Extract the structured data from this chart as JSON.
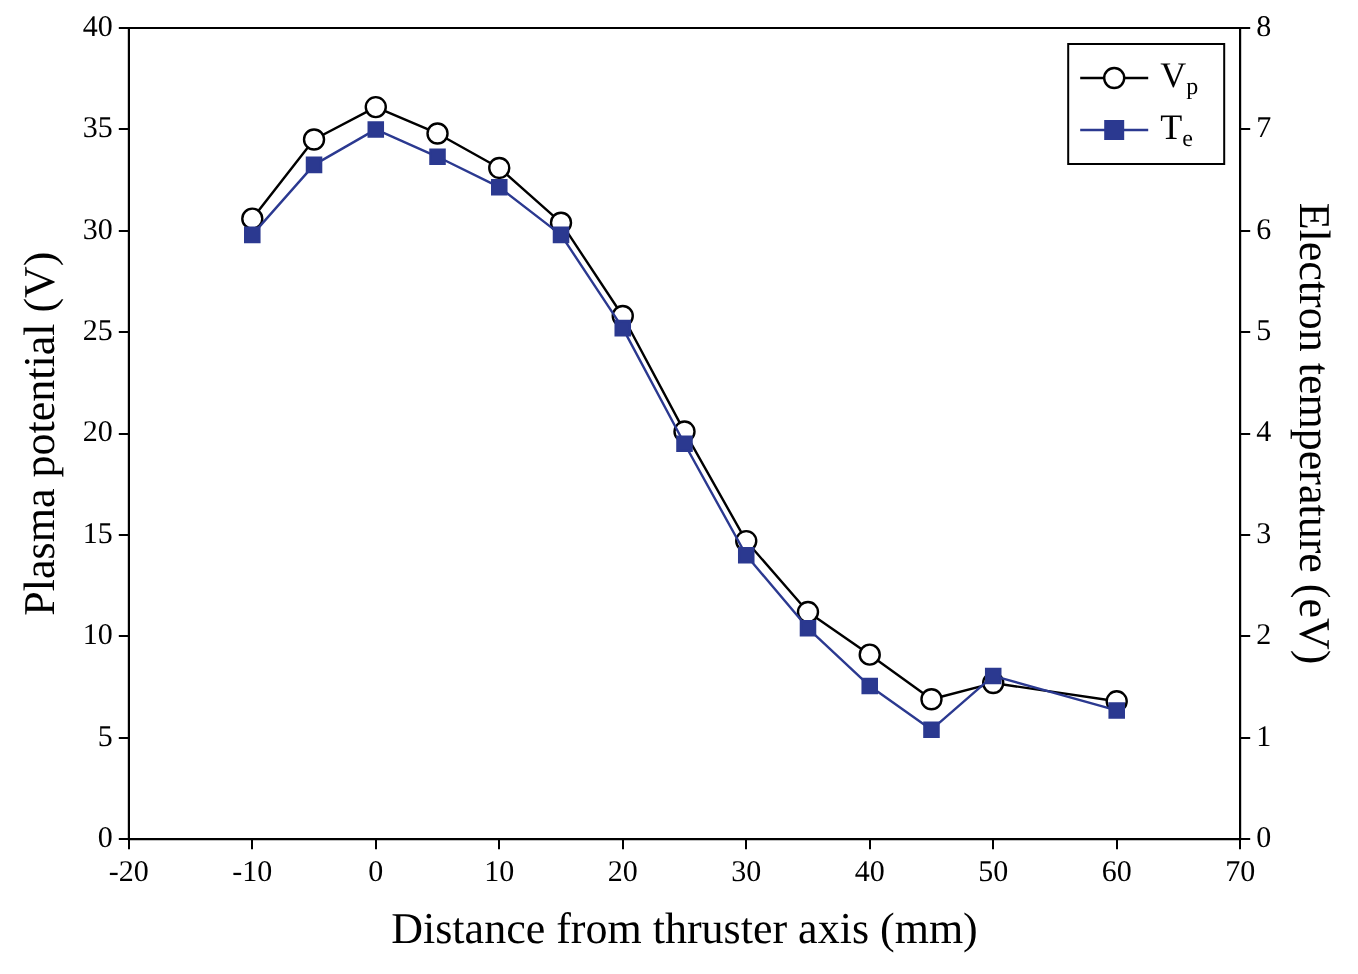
{
  "chart_data": {
    "type": "line",
    "xlabel": "Distance from thruster axis (mm)",
    "ylabel": "Plasma potential (V)",
    "y2label": "Electron temperature (eV)",
    "x": [
      -10,
      -5,
      0,
      5,
      10,
      15,
      20,
      25,
      30,
      35,
      40,
      45,
      50,
      60
    ],
    "xlim": [
      -20,
      70
    ],
    "xticks": [
      -20,
      -10,
      0,
      10,
      20,
      30,
      40,
      50,
      60,
      70
    ],
    "ylim": [
      0,
      40
    ],
    "yticks": [
      0,
      5,
      10,
      15,
      20,
      25,
      30,
      35,
      40
    ],
    "y2lim": [
      0,
      8
    ],
    "y2ticks": [
      0,
      1,
      2,
      3,
      4,
      5,
      6,
      7,
      8
    ],
    "grid": false,
    "legend": "top right",
    "line_style": "solid",
    "series": [
      {
        "name": "V$_{p}$",
        "color": "#000000",
        "marker": "circle",
        "values": [
          30.6,
          34.5,
          36.1,
          34.8,
          33.1,
          30.4,
          25.8,
          20.1,
          14.7,
          11.2,
          9.1,
          6.9,
          7.7,
          6.8
        ]
      },
      {
        "name": "T$_{e}$",
        "color": "#2b3990",
        "marker": "square",
        "axis": "y2",
        "values": [
          5.96,
          6.65,
          7.0,
          6.73,
          6.43,
          5.96,
          5.04,
          3.9,
          2.8,
          2.08,
          1.51,
          1.08,
          1.61,
          1.27
        ]
      }
    ]
  }
}
